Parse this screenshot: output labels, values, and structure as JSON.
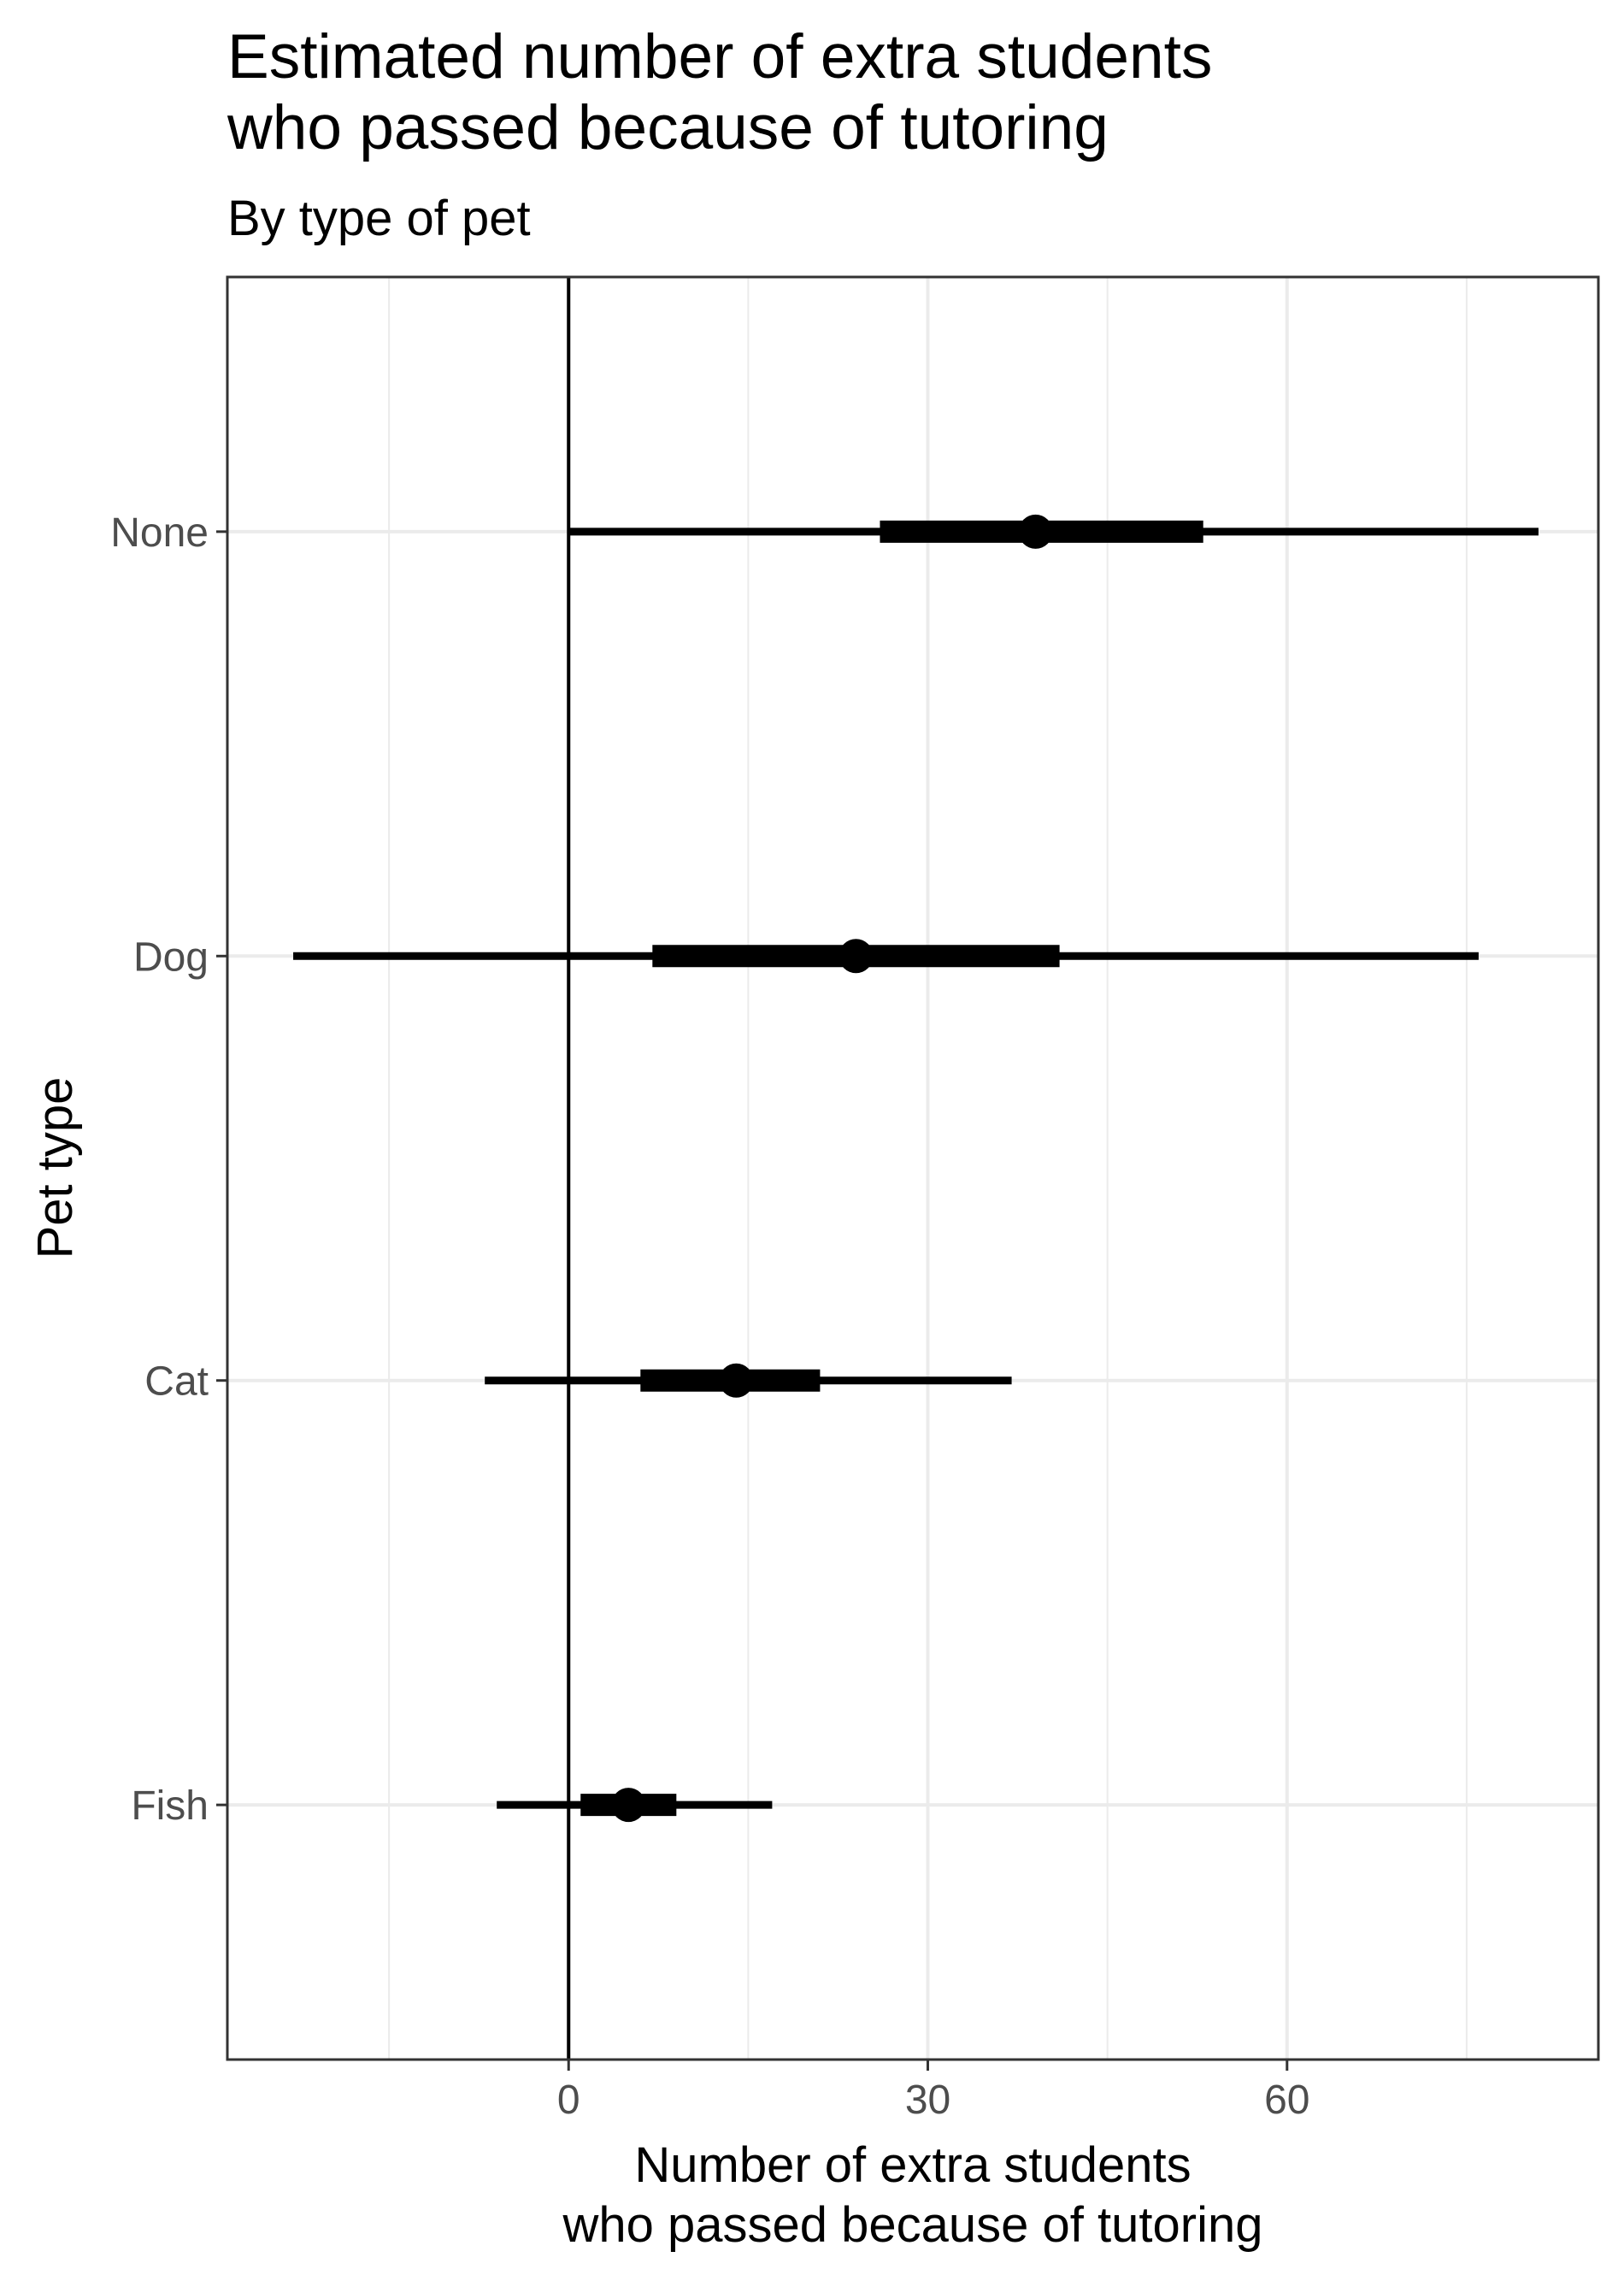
{
  "chart_data": {
    "type": "pointrange",
    "title_lines": [
      "Estimated number of extra students",
      "who passed because of tutoring"
    ],
    "subtitle": "By type of pet",
    "xlabel_lines": [
      "Number of extra students",
      "who passed because of tutoring"
    ],
    "ylabel": "Pet type",
    "xlim": [
      -28.5,
      86
    ],
    "x_ticks": [
      0,
      30,
      60
    ],
    "x_tick_labels": [
      "0",
      "30",
      "60"
    ],
    "x_minor_ticks": [
      -15,
      15,
      45,
      75
    ],
    "reference_line_x": 0,
    "grid": true,
    "categories": [
      "None",
      "Dog",
      "Cat",
      "Fish"
    ],
    "points": [
      {
        "category": "None",
        "estimate": 39,
        "inner": [
          26,
          53
        ],
        "outer": [
          0,
          81
        ]
      },
      {
        "category": "Dog",
        "estimate": 24,
        "inner": [
          7,
          41
        ],
        "outer": [
          -23,
          76
        ]
      },
      {
        "category": "Cat",
        "estimate": 14,
        "inner": [
          6,
          21
        ],
        "outer": [
          -7,
          37
        ]
      },
      {
        "category": "Fish",
        "estimate": 5,
        "inner": [
          1,
          9
        ],
        "outer": [
          -6,
          17
        ]
      }
    ],
    "colors": {
      "marks": "#000000",
      "grid": "#ebebeb",
      "panel_border": "#333333",
      "tick_text": "#4d4d4d"
    }
  }
}
